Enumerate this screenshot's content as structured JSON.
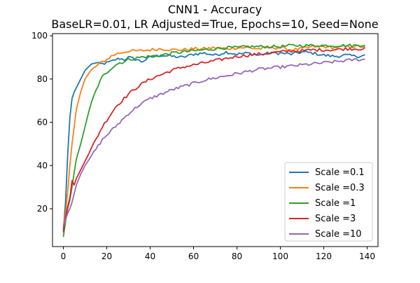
{
  "chart_data": {
    "type": "line",
    "title": "CNN1 - Accuracy",
    "subtitle": "BaseLR=0.01, LR Adjusted=True, Epochs=10, Seed=None",
    "xlabel": "",
    "ylabel": "",
    "xlim": [
      -5,
      145
    ],
    "ylim": [
      2.5,
      101
    ],
    "xticks": [
      0,
      20,
      40,
      60,
      80,
      100,
      120,
      140
    ],
    "yticks": [
      20,
      40,
      60,
      80,
      100
    ],
    "grid": false,
    "legend_position": "lower-right",
    "x_step": 1,
    "series": [
      {
        "name": "Scale =0.1",
        "color": "#1f77b4",
        "points": [
          [
            0,
            10
          ],
          [
            1,
            23
          ],
          [
            2,
            45
          ],
          [
            3,
            62
          ],
          [
            4,
            71
          ],
          [
            5,
            74
          ],
          [
            6,
            76
          ],
          [
            8,
            80
          ],
          [
            10,
            84
          ],
          [
            12,
            86
          ],
          [
            14,
            87.5
          ],
          [
            16,
            87
          ],
          [
            18,
            87
          ],
          [
            20,
            87.5
          ],
          [
            22,
            88
          ],
          [
            24,
            89
          ],
          [
            26,
            89.5
          ],
          [
            28,
            89
          ],
          [
            30,
            90
          ],
          [
            32,
            89.5
          ],
          [
            34,
            89
          ],
          [
            36,
            88
          ],
          [
            38,
            89
          ],
          [
            40,
            90
          ],
          [
            45,
            91
          ],
          [
            50,
            90.5
          ],
          [
            55,
            90
          ],
          [
            60,
            91.5
          ],
          [
            65,
            92
          ],
          [
            70,
            91
          ],
          [
            75,
            92.5
          ],
          [
            80,
            91.5
          ],
          [
            85,
            92
          ],
          [
            90,
            91
          ],
          [
            95,
            92
          ],
          [
            100,
            92
          ],
          [
            105,
            91.5
          ],
          [
            110,
            92.5
          ],
          [
            115,
            92
          ],
          [
            120,
            91
          ],
          [
            125,
            90.5
          ],
          [
            130,
            91
          ],
          [
            135,
            90.5
          ],
          [
            139,
            91
          ]
        ]
      },
      {
        "name": "Scale =0.3",
        "color": "#ff7f0e",
        "points": [
          [
            0,
            12
          ],
          [
            1,
            18
          ],
          [
            2,
            28
          ],
          [
            3,
            40
          ],
          [
            4,
            50
          ],
          [
            5,
            58
          ],
          [
            6,
            66
          ],
          [
            8,
            74
          ],
          [
            10,
            80
          ],
          [
            12,
            83
          ],
          [
            14,
            85
          ],
          [
            16,
            86.5
          ],
          [
            18,
            88
          ],
          [
            20,
            89
          ],
          [
            22,
            90.5
          ],
          [
            24,
            91.5
          ],
          [
            26,
            92
          ],
          [
            28,
            92.5
          ],
          [
            30,
            93
          ],
          [
            35,
            93
          ],
          [
            40,
            93.5
          ],
          [
            45,
            94
          ],
          [
            50,
            93.5
          ],
          [
            55,
            93.5
          ],
          [
            60,
            94
          ],
          [
            65,
            94
          ],
          [
            70,
            94.5
          ],
          [
            75,
            94
          ],
          [
            80,
            94.5
          ],
          [
            85,
            94.5
          ],
          [
            90,
            94
          ],
          [
            95,
            94.5
          ],
          [
            100,
            94.5
          ],
          [
            105,
            93.5
          ],
          [
            110,
            94
          ],
          [
            115,
            95
          ],
          [
            120,
            95
          ],
          [
            125,
            94.5
          ],
          [
            130,
            95
          ],
          [
            135,
            95
          ],
          [
            139,
            95
          ]
        ]
      },
      {
        "name": "Scale =1",
        "color": "#2ca02c",
        "points": [
          [
            0,
            7
          ],
          [
            1,
            14
          ],
          [
            2,
            20
          ],
          [
            3,
            24
          ],
          [
            4,
            30
          ],
          [
            5,
            37
          ],
          [
            6,
            43
          ],
          [
            8,
            50
          ],
          [
            10,
            58
          ],
          [
            12,
            66
          ],
          [
            14,
            72
          ],
          [
            16,
            77
          ],
          [
            18,
            81
          ],
          [
            20,
            83
          ],
          [
            22,
            85
          ],
          [
            24,
            86.5
          ],
          [
            26,
            87.5
          ],
          [
            28,
            88
          ],
          [
            30,
            89
          ],
          [
            35,
            90
          ],
          [
            40,
            90.5
          ],
          [
            45,
            91
          ],
          [
            50,
            92
          ],
          [
            55,
            92.5
          ],
          [
            60,
            93
          ],
          [
            65,
            93.5
          ],
          [
            70,
            94
          ],
          [
            75,
            94.5
          ],
          [
            80,
            94.5
          ],
          [
            85,
            95
          ],
          [
            90,
            95
          ],
          [
            95,
            95
          ],
          [
            100,
            95
          ],
          [
            105,
            95.5
          ],
          [
            110,
            95.5
          ],
          [
            115,
            95.5
          ],
          [
            120,
            95.5
          ],
          [
            125,
            95.5
          ],
          [
            130,
            95.5
          ],
          [
            135,
            95.5
          ],
          [
            139,
            96
          ]
        ]
      },
      {
        "name": "Scale =3",
        "color": "#d62728",
        "points": [
          [
            0,
            9
          ],
          [
            1,
            16
          ],
          [
            2,
            21
          ],
          [
            3,
            25
          ],
          [
            4,
            33
          ],
          [
            5,
            31
          ],
          [
            6,
            34
          ],
          [
            8,
            38
          ],
          [
            10,
            42
          ],
          [
            12,
            46
          ],
          [
            14,
            50
          ],
          [
            16,
            54
          ],
          [
            18,
            58
          ],
          [
            20,
            61
          ],
          [
            22,
            64
          ],
          [
            24,
            67
          ],
          [
            26,
            69
          ],
          [
            28,
            71
          ],
          [
            30,
            73
          ],
          [
            35,
            77
          ],
          [
            40,
            80
          ],
          [
            45,
            82
          ],
          [
            50,
            84
          ],
          [
            55,
            85.5
          ],
          [
            60,
            86.5
          ],
          [
            65,
            87.5
          ],
          [
            70,
            88.5
          ],
          [
            75,
            89.5
          ],
          [
            80,
            90.5
          ],
          [
            85,
            91
          ],
          [
            90,
            91.5
          ],
          [
            95,
            92
          ],
          [
            100,
            92.5
          ],
          [
            105,
            93
          ],
          [
            110,
            93
          ],
          [
            115,
            93.5
          ],
          [
            120,
            93.5
          ],
          [
            125,
            93.5
          ],
          [
            130,
            94
          ],
          [
            135,
            94
          ],
          [
            139,
            94
          ]
        ]
      },
      {
        "name": "Scale =10",
        "color": "#9467bd",
        "points": [
          [
            0,
            12
          ],
          [
            1,
            15
          ],
          [
            2,
            18
          ],
          [
            3,
            20
          ],
          [
            4,
            23
          ],
          [
            5,
            27
          ],
          [
            6,
            31
          ],
          [
            8,
            36
          ],
          [
            10,
            40
          ],
          [
            12,
            43
          ],
          [
            14,
            46
          ],
          [
            16,
            49
          ],
          [
            18,
            52
          ],
          [
            20,
            54
          ],
          [
            22,
            56
          ],
          [
            24,
            58
          ],
          [
            26,
            60
          ],
          [
            28,
            62
          ],
          [
            30,
            64
          ],
          [
            35,
            68
          ],
          [
            40,
            71
          ],
          [
            45,
            73
          ],
          [
            50,
            75
          ],
          [
            55,
            76.5
          ],
          [
            60,
            78
          ],
          [
            65,
            79.5
          ],
          [
            70,
            80.5
          ],
          [
            75,
            81.5
          ],
          [
            80,
            82.5
          ],
          [
            85,
            83.5
          ],
          [
            90,
            84.5
          ],
          [
            95,
            85
          ],
          [
            100,
            85.5
          ],
          [
            105,
            86
          ],
          [
            110,
            86.5
          ],
          [
            115,
            87
          ],
          [
            120,
            87.5
          ],
          [
            125,
            88
          ],
          [
            130,
            88.5
          ],
          [
            135,
            89
          ],
          [
            139,
            89
          ]
        ]
      }
    ]
  }
}
